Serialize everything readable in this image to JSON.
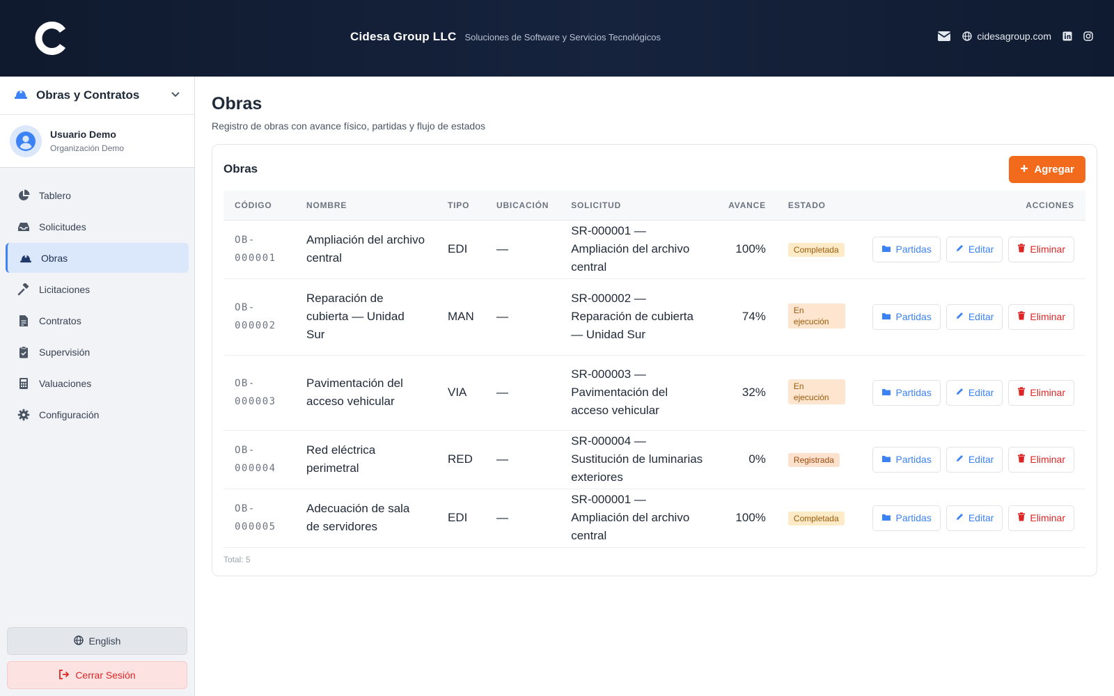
{
  "header": {
    "brand_name": "Cidesa Group LLC",
    "brand_tagline": "Soluciones de Software y Servicios Tecnológicos",
    "site": "cidesagroup.com",
    "icons": [
      "envelope-icon",
      "globe-icon",
      "linkedin-icon",
      "instagram-icon"
    ]
  },
  "sidebar": {
    "module": "Obras y Contratos",
    "user_name": "Usuario Demo",
    "user_org": "Organización Demo",
    "items": [
      {
        "label": "Tablero",
        "icon": "pie-chart-icon"
      },
      {
        "label": "Solicitudes",
        "icon": "inbox-icon"
      },
      {
        "label": "Obras",
        "icon": "hard-hat-icon",
        "active": true
      },
      {
        "label": "Licitaciones",
        "icon": "gavel-icon"
      },
      {
        "label": "Contratos",
        "icon": "contract-icon"
      },
      {
        "label": "Supervisión",
        "icon": "clipboard-check-icon"
      },
      {
        "label": "Valuaciones",
        "icon": "calculator-icon"
      },
      {
        "label": "Configuración",
        "icon": "gear-icon"
      }
    ],
    "language_button": "English",
    "logout_button": "Cerrar Sesión"
  },
  "main": {
    "title": "Obras",
    "subtitle": "Registro de obras con avance físico, partidas y flujo de estados",
    "card_title": "Obras",
    "add_button": "Agregar",
    "columns": [
      "CÓDIGO",
      "NOMBRE",
      "TIPO",
      "UBICACIÓN",
      "SOLICITUD",
      "AVANCE",
      "ESTADO",
      "ACCIONES"
    ],
    "rows": [
      {
        "code": "OB-000001",
        "name": "Ampliación del archivo central",
        "type": "EDI",
        "location": "—",
        "request": "SR-000001 — Ampliación del archivo central",
        "progress": "100%",
        "status": "Completada"
      },
      {
        "code": "OB-000002",
        "name": "Reparación de cubierta — Unidad Sur",
        "type": "MAN",
        "location": "—",
        "request": "SR-000002 — Reparación de cubierta — Unidad Sur",
        "progress": "74%",
        "status": "En ejecución"
      },
      {
        "code": "OB-000003",
        "name": "Pavimentación del acceso vehicular",
        "type": "VIA",
        "location": "—",
        "request": "SR-000003 — Pavimentación del acceso vehicular",
        "progress": "32%",
        "status": "En ejecución"
      },
      {
        "code": "OB-000004",
        "name": "Red eléctrica perimetral",
        "type": "RED",
        "location": "—",
        "request": "SR-000004 — Sustitución de luminarias exteriores",
        "progress": "0%",
        "status": "Registrada"
      },
      {
        "code": "OB-000005",
        "name": "Adecuación de sala de servidores",
        "type": "EDI",
        "location": "—",
        "request": "SR-000001 — Ampliación del archivo central",
        "progress": "100%",
        "status": "Completada"
      }
    ],
    "action_labels": {
      "items": "Partidas",
      "edit": "Editar",
      "delete": "Eliminar"
    },
    "total": "Total: 5"
  },
  "colors": {
    "accent": "#f26b1d",
    "primary": "#3b82f6",
    "danger": "#dc2626",
    "header_bg": "#0f1a2e"
  }
}
